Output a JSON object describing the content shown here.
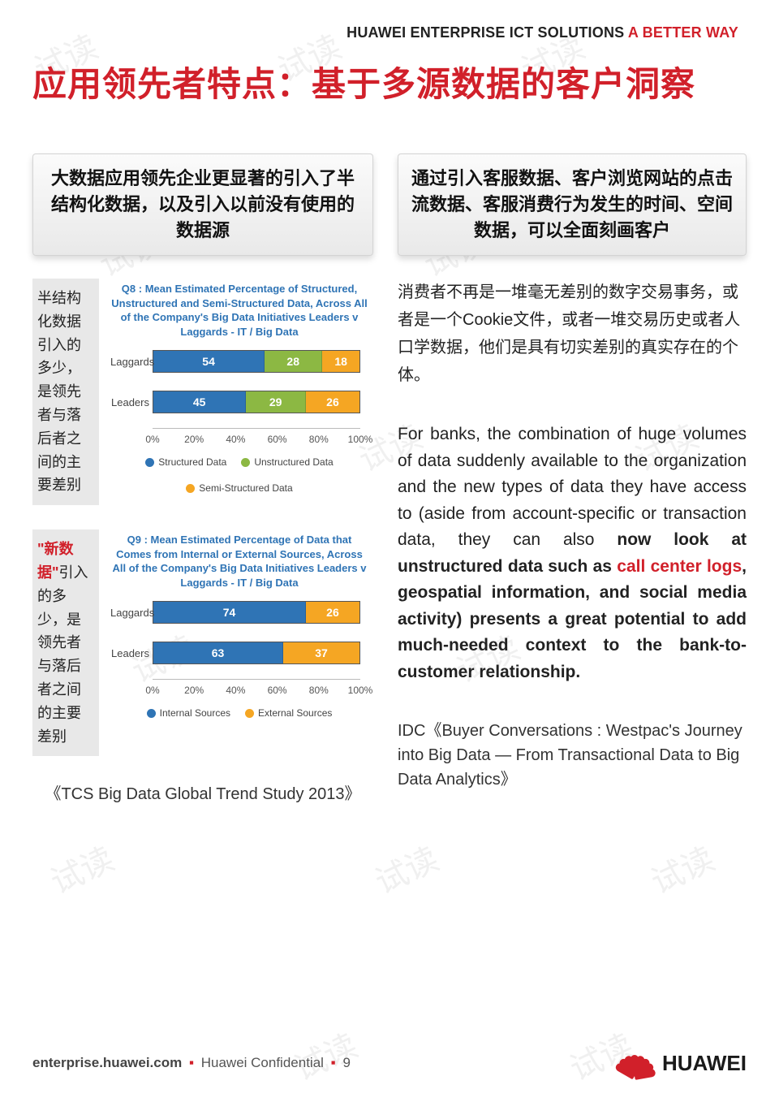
{
  "header": {
    "tagline_black": "HUAWEI ENTERPRISE ICT SOLUTIONS",
    "tagline_red": "A BETTER WAY"
  },
  "title": "应用领先者特点：基于多源数据的客户洞察",
  "left": {
    "panel_heading": "大数据应用领先企业更显著的引入了半结构化数据，以及引入以前没有使用的数据源",
    "chart1": {
      "note": "半结构化数据引入的多少，是领先者与落后者之间的主要差别",
      "type": "stacked-bar-horizontal",
      "title": "Q8 : Mean Estimated Percentage of Structured, Unstructured and Semi-Structured Data, Across All of the Company's Big Data Initiatives Leaders v Laggards - IT / Big Data",
      "rows": [
        {
          "label": "Laggards",
          "segments": [
            {
              "value": 54,
              "color": "#2f74b5"
            },
            {
              "value": 28,
              "color": "#8cb843"
            },
            {
              "value": 18,
              "color": "#f5a623"
            }
          ]
        },
        {
          "label": "Leaders",
          "segments": [
            {
              "value": 45,
              "color": "#2f74b5"
            },
            {
              "value": 29,
              "color": "#8cb843"
            },
            {
              "value": 26,
              "color": "#f5a623"
            }
          ]
        }
      ],
      "x_ticks": [
        "0%",
        "20%",
        "40%",
        "60%",
        "80%",
        "100%"
      ],
      "legend": [
        {
          "label": "Structured Data",
          "color": "#2f74b5"
        },
        {
          "label": "Unstructured Data",
          "color": "#8cb843"
        },
        {
          "label": "Semi-Structured Data",
          "color": "#f5a623"
        }
      ]
    },
    "chart2": {
      "note_prefix_red": "\"新数据\"",
      "note_rest": "引入的多少，是领先者与落后者之间的主要差别",
      "type": "stacked-bar-horizontal",
      "title": "Q9 : Mean Estimated Percentage of Data that Comes from Internal or External Sources, Across All of the Company's Big Data Initiatives Leaders v Laggards - IT / Big Data",
      "rows": [
        {
          "label": "Laggards",
          "segments": [
            {
              "value": 74,
              "color": "#2f74b5"
            },
            {
              "value": 26,
              "color": "#f5a623"
            }
          ]
        },
        {
          "label": "Leaders",
          "segments": [
            {
              "value": 63,
              "color": "#2f74b5"
            },
            {
              "value": 37,
              "color": "#f5a623"
            }
          ]
        }
      ],
      "x_ticks": [
        "0%",
        "20%",
        "40%",
        "60%",
        "80%",
        "100%"
      ],
      "legend": [
        {
          "label": "Internal Sources",
          "color": "#2f74b5"
        },
        {
          "label": "External Sources",
          "color": "#f5a623"
        }
      ]
    },
    "source": "《TCS Big Data Global Trend Study 2013》"
  },
  "right": {
    "panel_heading": "通过引入客服数据、客户浏览网站的点击流数据、客服消费行为发生的时间、空间数据，可以全面刻画客户",
    "para_cn": "消费者不再是一堆毫无差别的数字交易事务，或者是一个Cookie文件，或者一堆交易历史或者人口学数据，他们是具有切实差别的真实存在的个体。",
    "en_lead": "For banks, the combination of huge volumes of data suddenly available to the organization and the new types of data they have access to (aside from account-specific or transaction data, they can also ",
    "en_bold1": "now look at unstructured data such as ",
    "en_red": "call center logs",
    "en_bold2": ", geospatial information, and social media activity) presents a great potential to add much-needed context to the bank-to-customer relationship.",
    "citation": "IDC《Buyer Conversations : Westpac's Journey into Big Data — From Transactional Data to Big Data Analytics》"
  },
  "footer": {
    "domain": "enterprise.huawei.com",
    "conf": "Huawei Confidential",
    "page": "9",
    "brand": "HUAWEI"
  },
  "watermark": "试读",
  "colors": {
    "red": "#d1202a",
    "blue": "#2f74b5",
    "green": "#8cb843",
    "orange": "#f5a623",
    "panel_bg": "#e9e9e9"
  }
}
